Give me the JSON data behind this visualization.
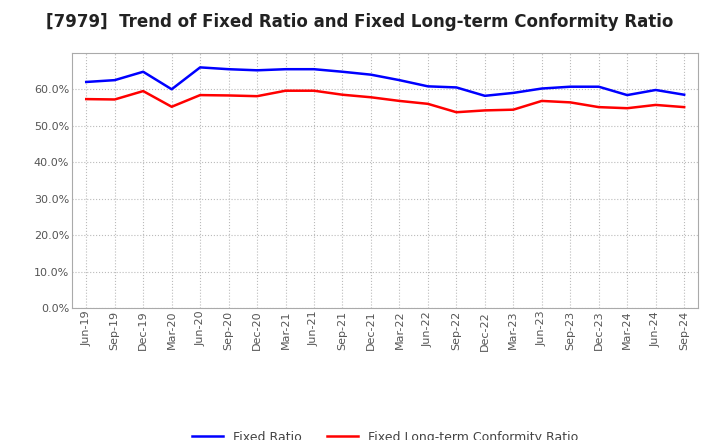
{
  "title": "[7979]  Trend of Fixed Ratio and Fixed Long-term Conformity Ratio",
  "x_labels": [
    "Jun-19",
    "Sep-19",
    "Dec-19",
    "Mar-20",
    "Jun-20",
    "Sep-20",
    "Dec-20",
    "Mar-21",
    "Jun-21",
    "Sep-21",
    "Dec-21",
    "Mar-22",
    "Jun-22",
    "Sep-22",
    "Dec-22",
    "Mar-23",
    "Jun-23",
    "Sep-23",
    "Dec-23",
    "Mar-24",
    "Jun-24",
    "Sep-24"
  ],
  "fixed_ratio": [
    0.62,
    0.625,
    0.648,
    0.6,
    0.66,
    0.655,
    0.652,
    0.655,
    0.655,
    0.648,
    0.64,
    0.625,
    0.608,
    0.605,
    0.582,
    0.59,
    0.602,
    0.607,
    0.607,
    0.584,
    0.598,
    0.585
  ],
  "fixed_lt_ratio": [
    0.573,
    0.572,
    0.595,
    0.552,
    0.584,
    0.583,
    0.581,
    0.596,
    0.596,
    0.585,
    0.578,
    0.568,
    0.56,
    0.537,
    0.542,
    0.544,
    0.568,
    0.564,
    0.551,
    0.548,
    0.557,
    0.551
  ],
  "fixed_ratio_color": "#0000FF",
  "fixed_lt_ratio_color": "#FF0000",
  "background_color": "#FFFFFF",
  "plot_bg_color": "#FFFFFF",
  "grid_color": "#AAAAAA",
  "ylim": [
    0.0,
    0.7
  ],
  "yticks": [
    0.0,
    0.1,
    0.2,
    0.3,
    0.4,
    0.5,
    0.6
  ],
  "legend_fixed_ratio": "Fixed Ratio",
  "legend_fixed_lt_ratio": "Fixed Long-term Conformity Ratio",
  "title_fontsize": 12,
  "tick_fontsize": 8,
  "line_width": 1.8
}
